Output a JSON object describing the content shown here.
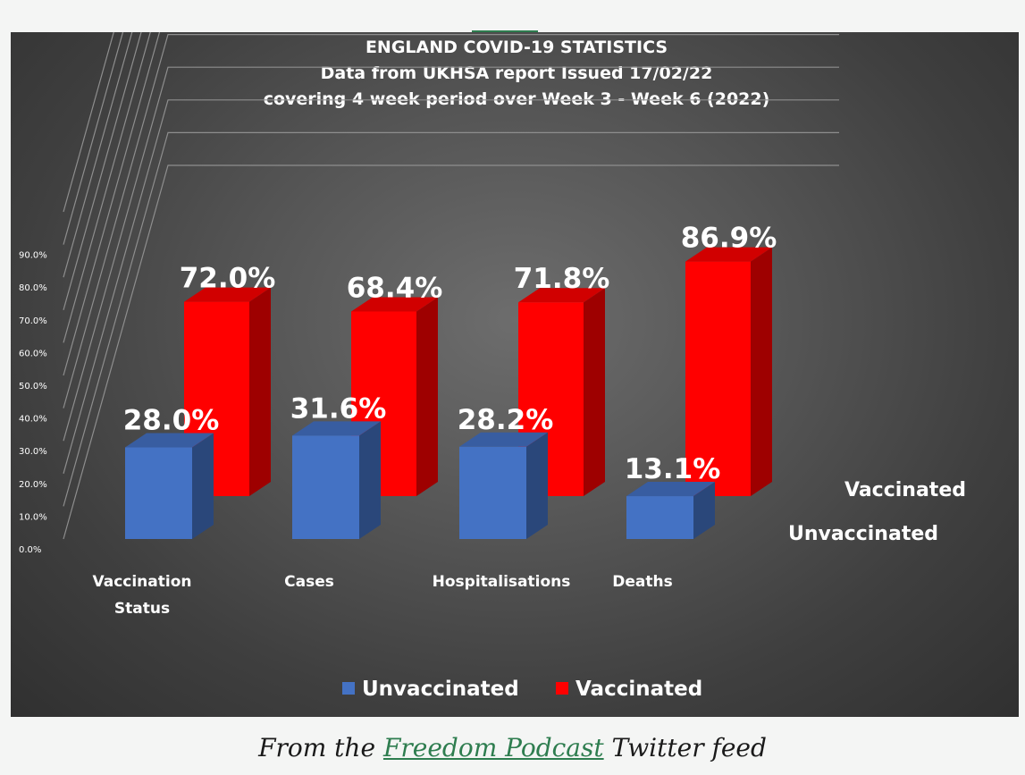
{
  "chart_data": {
    "type": "bar",
    "title_lines": [
      "ENGLAND COVID-19 STATISTICS",
      "Data from UKHSA report Issued 17/02/22",
      "covering 4 week period over Week 3 - Week 6 (2022)"
    ],
    "categories": [
      "Vaccination Status",
      "Cases",
      "Hospitalisations",
      "Deaths"
    ],
    "category_label_lines": [
      [
        "Vaccination",
        "Status"
      ],
      [
        "Cases"
      ],
      [
        "Hospitalisations"
      ],
      [
        "Deaths"
      ]
    ],
    "series": [
      {
        "name": "Unvaccinated",
        "values": [
          28.0,
          31.6,
          28.2,
          13.1
        ],
        "labels": [
          "28.0%",
          "31.6%",
          "28.2%",
          "13.1%"
        ],
        "color": "#4472c4"
      },
      {
        "name": "Vaccinated",
        "values": [
          72.0,
          68.4,
          71.8,
          86.9
        ],
        "labels": [
          "72.0%",
          "68.4%",
          "71.8%",
          "86.9%"
        ],
        "color": "#ff0000"
      }
    ],
    "y_tick_labels": [
      "0.0%",
      "10.0%",
      "20.0%",
      "30.0%",
      "40.0%",
      "50.0%",
      "60.0%",
      "70.0%",
      "80.0%",
      "90.0%"
    ],
    "ylim": [
      0,
      90
    ],
    "grid": true,
    "legend_position": "bottom",
    "style": "3d-column"
  },
  "caption": {
    "prefix": "From the ",
    "link_text": "Freedom Podcast",
    "suffix": " Twitter feed"
  }
}
